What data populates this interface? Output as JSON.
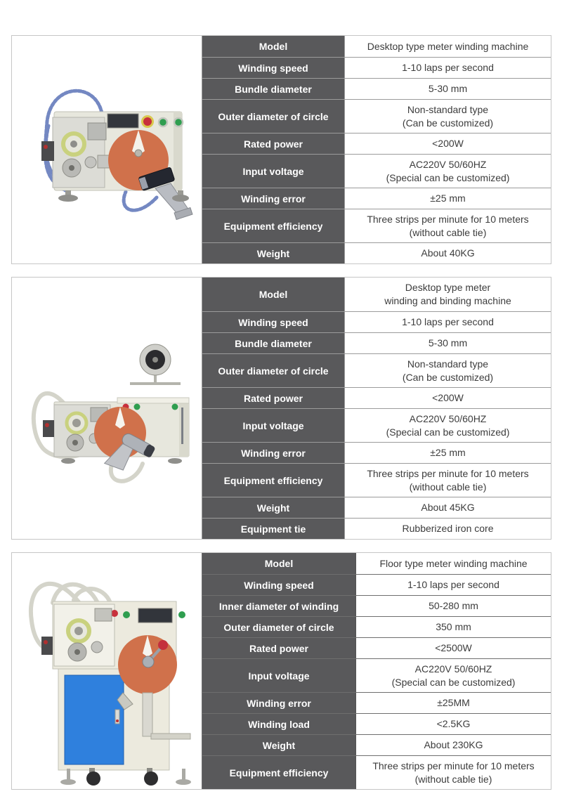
{
  "colors": {
    "header_cell_bg": "#59595b",
    "header_cell_text": "#ffffff",
    "value_text": "#3c3c3c",
    "grid_line": "#9b9b9b",
    "panel_border": "#c6c6c6",
    "machine_body": "#e7e7dd",
    "winding_disc_orange": "#d0714b",
    "cabinet_blue": "#2f80dd",
    "gear_ring_yellow_green": "#c9d17e",
    "cable_blue": "#7488c2",
    "button_red": "#c8303c",
    "button_green": "#2f9e4f"
  },
  "sections": [
    {
      "image": "desktop-meter-winding-machine-illustration",
      "rows": [
        {
          "label": "Model",
          "value": "Desktop type meter winding machine"
        },
        {
          "label": "Winding speed",
          "value": "1-10 laps per second"
        },
        {
          "label": "Bundle diameter",
          "value": "5-30 mm"
        },
        {
          "label": "Outer diameter of circle",
          "value": "Non-standard type\n(Can be customized)"
        },
        {
          "label": "Rated power",
          "value": "<200W"
        },
        {
          "label": "Input voltage",
          "value": "AC220V 50/60HZ\n(Special can be customized)"
        },
        {
          "label": "Winding error",
          "value": "±25 mm"
        },
        {
          "label": "Equipment efficiency",
          "value": "Three strips per minute for 10 meters\n(without cable tie)"
        },
        {
          "label": "Weight",
          "value": "About 40KG"
        }
      ]
    },
    {
      "image": "desktop-meter-winding-and-binding-machine-illustration",
      "rows": [
        {
          "label": "Model",
          "value": "Desktop type meter\nwinding and binding machine"
        },
        {
          "label": "Winding speed",
          "value": "1-10 laps per second"
        },
        {
          "label": "Bundle diameter",
          "value": "5-30 mm"
        },
        {
          "label": "Outer diameter of circle",
          "value": "Non-standard type\n(Can be customized)"
        },
        {
          "label": "Rated power",
          "value": "<200W"
        },
        {
          "label": "Input voltage",
          "value": "AC220V 50/60HZ\n(Special can be customized)"
        },
        {
          "label": "Winding error",
          "value": "±25 mm"
        },
        {
          "label": "Equipment efficiency",
          "value": "Three strips per minute for 10 meters\n(without cable tie)"
        },
        {
          "label": "Weight",
          "value": "About 45KG"
        },
        {
          "label": "Equipment tie",
          "value": "Rubberized iron core"
        }
      ]
    },
    {
      "image": "floor-type-meter-winding-machine-illustration",
      "rows": [
        {
          "label": "Model",
          "value": "Floor type meter winding machine"
        },
        {
          "label": "Winding speed",
          "value": "1-10 laps per second"
        },
        {
          "label": "Inner diameter of winding",
          "value": "50-280 mm"
        },
        {
          "label": "Outer diameter of circle",
          "value": "350 mm"
        },
        {
          "label": "Rated power",
          "value": "<2500W"
        },
        {
          "label": "Input voltage",
          "value": "AC220V 50/60HZ\n(Special can be customized)"
        },
        {
          "label": "Winding error",
          "value": "±25MM"
        },
        {
          "label": "Winding load",
          "value": "<2.5KG"
        },
        {
          "label": "Weight",
          "value": "About 230KG"
        },
        {
          "label": "Equipment efficiency",
          "value": "Three strips per minute for 10 meters\n(without cable tie)"
        }
      ]
    }
  ]
}
